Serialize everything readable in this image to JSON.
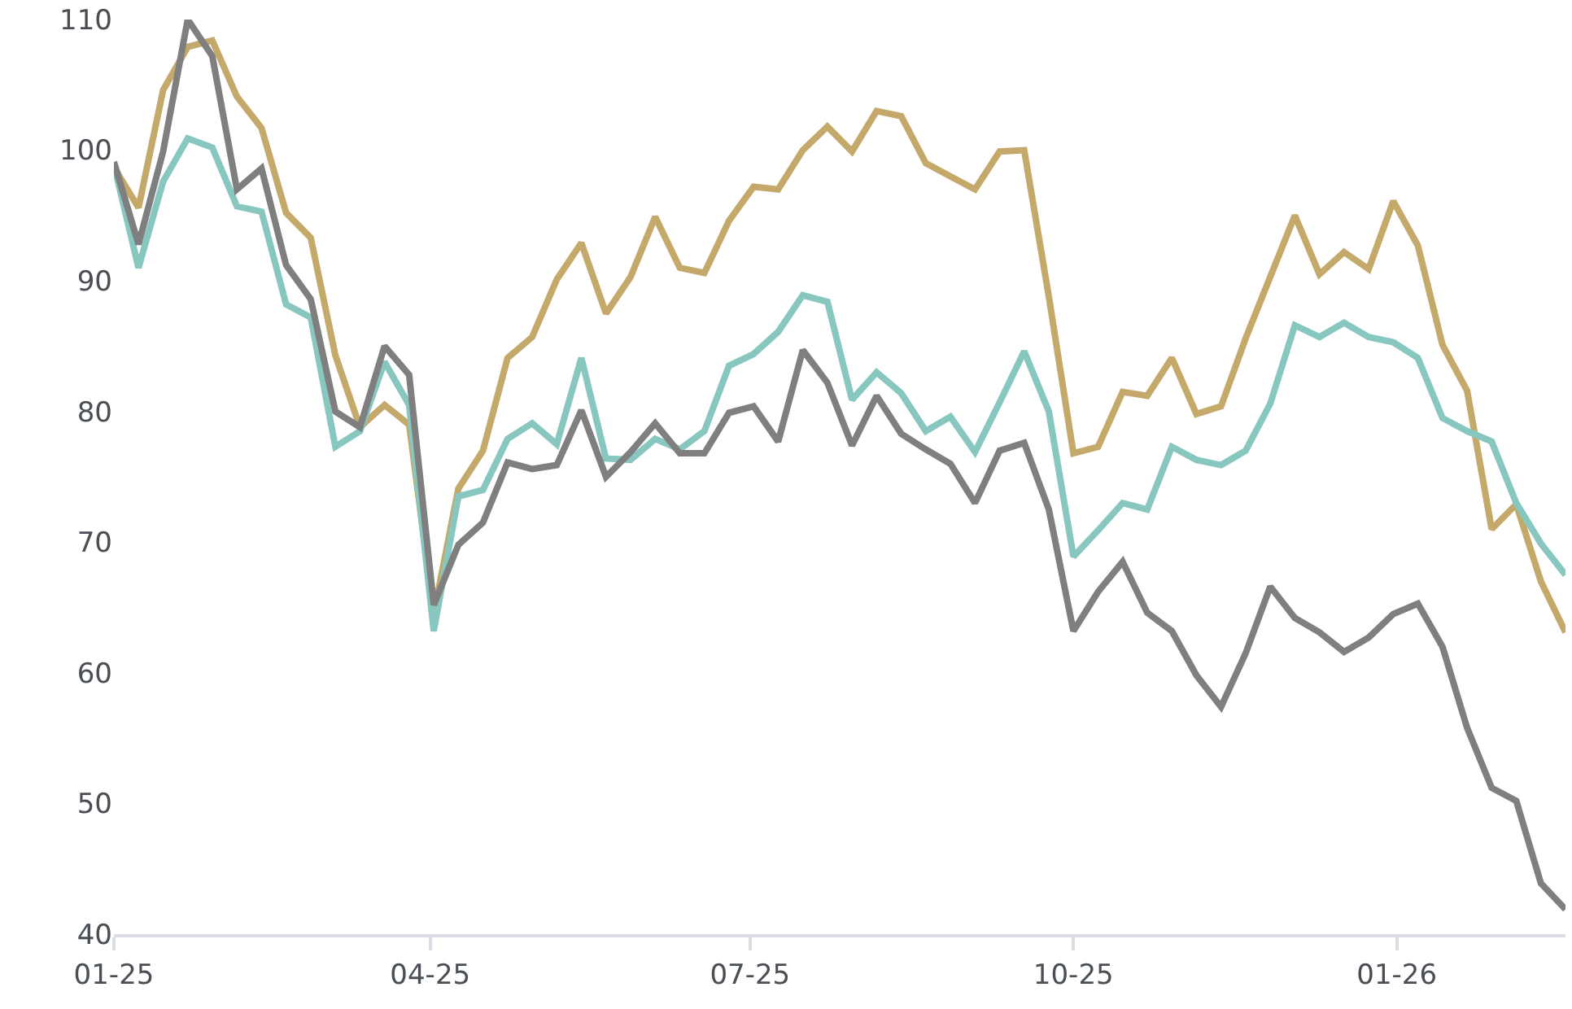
{
  "chart_data": {
    "type": "line",
    "x": [
      "2025-01-01",
      "2025-01-08",
      "2025-01-15",
      "2025-01-22",
      "2025-01-29",
      "2025-02-05",
      "2025-02-12",
      "2025-02-19",
      "2025-02-26",
      "2025-03-05",
      "2025-03-12",
      "2025-03-19",
      "2025-03-26",
      "2025-04-02",
      "2025-04-09",
      "2025-04-16",
      "2025-04-23",
      "2025-04-30",
      "2025-05-07",
      "2025-05-14",
      "2025-05-21",
      "2025-05-28",
      "2025-06-04",
      "2025-06-11",
      "2025-06-18",
      "2025-06-25",
      "2025-07-02",
      "2025-07-09",
      "2025-07-16",
      "2025-07-23",
      "2025-07-30",
      "2025-08-06",
      "2025-08-13",
      "2025-08-20",
      "2025-08-27",
      "2025-09-03",
      "2025-09-10",
      "2025-09-17",
      "2025-09-24",
      "2025-10-01",
      "2025-10-08",
      "2025-10-15",
      "2025-10-22",
      "2025-10-29",
      "2025-11-05",
      "2025-11-12",
      "2025-11-19",
      "2025-11-26",
      "2025-12-03",
      "2025-12-10",
      "2025-12-17",
      "2025-12-24",
      "2025-12-31",
      "2026-01-07",
      "2026-01-14",
      "2026-01-21",
      "2026-01-28",
      "2026-02-04",
      "2026-02-11",
      "2026-02-18"
    ],
    "series": [
      {
        "color": "#c4a96a",
        "values": [
          98.7,
          95.6,
          104.6,
          107.9,
          108.4,
          104.1,
          101.7,
          95.2,
          93.3,
          84.3,
          78.8,
          80.5,
          79,
          64.5,
          74.1,
          77,
          84.1,
          85.7,
          90.1,
          92.9,
          87.5,
          90.3,
          94.9,
          91,
          90.6,
          94.6,
          97.2,
          97,
          100,
          101.8,
          99.9,
          103,
          102.6,
          99,
          98,
          97,
          99.9,
          100,
          88.8,
          76.8,
          77.3,
          81.5,
          81.2,
          84.1,
          79.8,
          80.4,
          85.6,
          90.3,
          95,
          90.5,
          92.2,
          90.9,
          96.1,
          92.7,
          85.1,
          81.6,
          71,
          72.9,
          67,
          63.1
        ]
      },
      {
        "color": "#88c7c0",
        "values": [
          98.9,
          91,
          97.6,
          100.9,
          100.2,
          95.7,
          95.3,
          88.2,
          87.2,
          77.3,
          78.5,
          83.8,
          80.5,
          63.2,
          73.5,
          74,
          77.9,
          79.1,
          77.5,
          84.1,
          76.4,
          76.3,
          77.9,
          77.1,
          78.5,
          83.5,
          84.4,
          86.1,
          88.9,
          88.4,
          80.9,
          83,
          81.4,
          78.5,
          79.6,
          76.9,
          80.7,
          84.6,
          80,
          68.9,
          70.9,
          73,
          72.5,
          77.3,
          76.3,
          75.9,
          77,
          80.6,
          86.6,
          85.7,
          86.8,
          85.7,
          85.3,
          84.1,
          79.5,
          78.5,
          77.7,
          73,
          69.9,
          67.5
        ]
      },
      {
        "color": "#7f7f7f",
        "values": [
          99.1,
          92.8,
          99.9,
          110,
          107.2,
          97,
          98.6,
          91.2,
          88.6,
          80,
          78.8,
          85,
          82.8,
          65.2,
          69.8,
          71.5,
          76.1,
          75.6,
          75.9,
          80.1,
          75,
          76.9,
          79.1,
          76.8,
          76.8,
          79.9,
          80.4,
          77.7,
          84.7,
          82.2,
          77.4,
          81.2,
          78.3,
          77.1,
          76,
          73,
          77,
          77.6,
          72.5,
          63.2,
          66.2,
          68.5,
          64.6,
          63.2,
          59.8,
          57.4,
          61.5,
          66.6,
          64.2,
          63.1,
          61.6,
          62.7,
          64.5,
          65.3,
          62,
          55.8,
          51.2,
          50.2,
          43.9,
          41.9
        ]
      }
    ],
    "xlim": [
      "2025-01-01",
      "2026-02-18"
    ],
    "xticks": [
      {
        "value": "2025-01-01",
        "label": "01-25"
      },
      {
        "value": "2025-04-01",
        "label": "04-25"
      },
      {
        "value": "2025-07-01",
        "label": "07-25"
      },
      {
        "value": "2025-10-01",
        "label": "10-25"
      },
      {
        "value": "2026-01-01",
        "label": "01-26"
      }
    ],
    "ylim": [
      40,
      110
    ],
    "yticks": [
      40,
      50,
      60,
      70,
      80,
      90,
      100,
      110
    ],
    "grid": false,
    "marker": "none",
    "line_style": "solid"
  }
}
